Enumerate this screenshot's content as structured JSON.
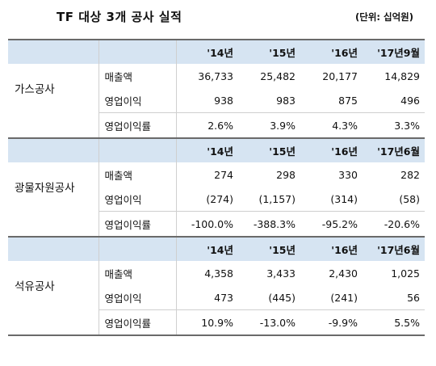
{
  "title": "TF 대상 3개 공사 실적",
  "unit": "(단위: 십억원)",
  "metric_labels": {
    "sales": "매출액",
    "op_income": "영업이익",
    "op_margin": "영업이익률"
  },
  "companies": [
    {
      "name": "가스공사",
      "headers": [
        "'14년",
        "'15년",
        "'16년",
        "'17년9월"
      ],
      "sales": [
        "36,733",
        "25,482",
        "20,177",
        "14,829"
      ],
      "op_income": [
        "938",
        "983",
        "875",
        "496"
      ],
      "op_margin": [
        "2.6%",
        "3.9%",
        "4.3%",
        "3.3%"
      ]
    },
    {
      "name": "광물자원공사",
      "headers": [
        "'14년",
        "'15년",
        "'16년",
        "'17년6월"
      ],
      "sales": [
        "274",
        "298",
        "330",
        "282"
      ],
      "op_income": [
        "(274)",
        "(1,157)",
        "(314)",
        "(58)"
      ],
      "op_margin": [
        "-100.0%",
        "-388.3%",
        "-95.2%",
        "-20.6%"
      ]
    },
    {
      "name": "석유공사",
      "headers": [
        "'14년",
        "'15년",
        "'16년",
        "'17년6월"
      ],
      "sales": [
        "4,358",
        "3,433",
        "2,430",
        "1,025"
      ],
      "op_income": [
        "473",
        "(445)",
        "(241)",
        "56"
      ],
      "op_margin": [
        "10.9%",
        "-13.0%",
        "-9.9%",
        "5.5%"
      ]
    }
  ]
}
